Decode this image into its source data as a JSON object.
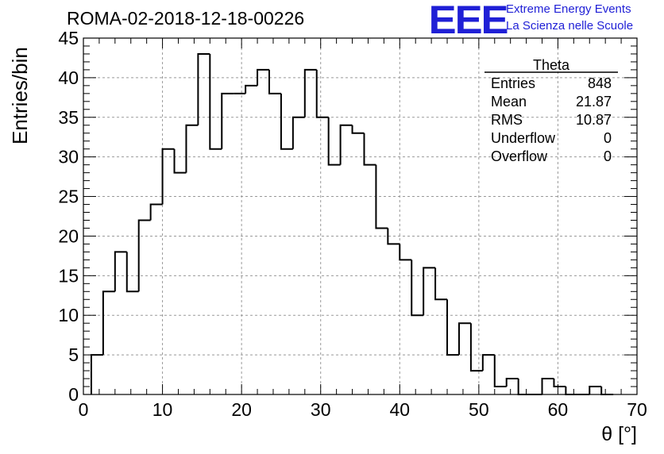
{
  "header": {
    "run_title": "ROMA-02-2018-12-18-00226",
    "logo_text": "EEE",
    "brand_line1": "Extreme Energy Events",
    "brand_line2": "La Scienza nelle Scuole",
    "brand_color": "#1f1fd6"
  },
  "stats_box": {
    "title": "Theta",
    "rows": [
      {
        "label": "Entries",
        "value": "848"
      },
      {
        "label": "Mean",
        "value": "21.87"
      },
      {
        "label": "RMS",
        "value": "10.87"
      },
      {
        "label": "Underflow",
        "value": "0"
      },
      {
        "label": "Overflow",
        "value": "0"
      }
    ]
  },
  "chart_data": {
    "type": "bar",
    "style": "step-histogram",
    "title": "ROMA-02-2018-12-18-00226",
    "xlabel": "θ [°]",
    "ylabel": "Entries/bin",
    "xlim": [
      0,
      70
    ],
    "ylim": [
      0,
      45
    ],
    "bin_width": 1.5,
    "bin_start": 1,
    "values": [
      5,
      13,
      18,
      13,
      22,
      24,
      31,
      28,
      34,
      43,
      31,
      38,
      38,
      39,
      41,
      38,
      31,
      35,
      41,
      35,
      29,
      34,
      33,
      29,
      21,
      19,
      17,
      10,
      16,
      12,
      5,
      9,
      3,
      5,
      1,
      2,
      0,
      0,
      2,
      1,
      0,
      0,
      1,
      0
    ],
    "x_ticks": [
      0,
      10,
      20,
      30,
      40,
      50,
      60,
      70
    ],
    "y_ticks": [
      0,
      5,
      10,
      15,
      20,
      25,
      30,
      35,
      40,
      45
    ],
    "grid": true,
    "line_color": "#000000"
  }
}
